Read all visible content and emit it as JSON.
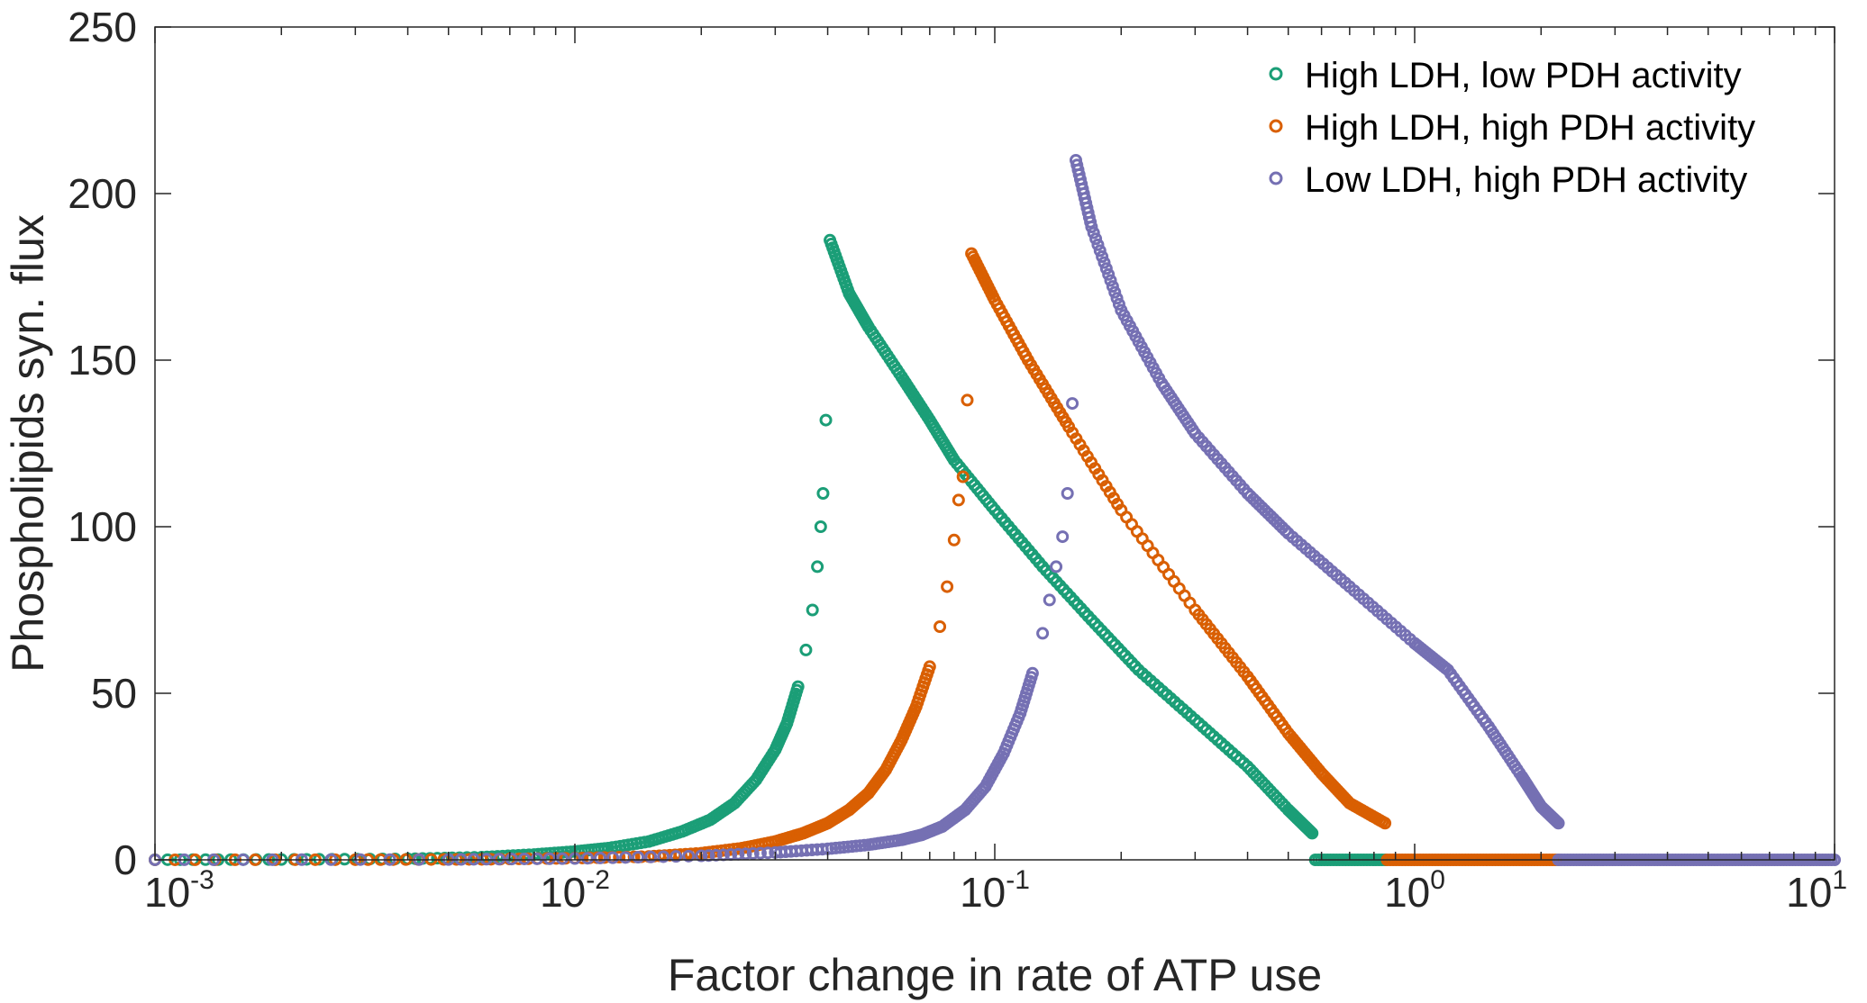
{
  "colors": {
    "axis": "#262626",
    "background": "#ffffff"
  },
  "chart_data": {
    "type": "scatter",
    "title": "",
    "xlabel": "Factor change in rate of ATP use",
    "ylabel": "Phospholipids syn. flux",
    "xscale": "log",
    "xlim": [
      0.001,
      10
    ],
    "ylim": [
      0,
      250
    ],
    "grid": false,
    "box": true,
    "legend_position": "top-right",
    "marker": "open-circle",
    "x_ticks": [
      {
        "base": "10",
        "exp": "-3",
        "value": 0.001
      },
      {
        "base": "10",
        "exp": "-2",
        "value": 0.01
      },
      {
        "base": "10",
        "exp": "-1",
        "value": 0.1
      },
      {
        "base": "10",
        "exp": "0",
        "value": 1
      },
      {
        "base": "10",
        "exp": "1",
        "value": 10
      }
    ],
    "y_ticks": [
      {
        "label": "0",
        "value": 0
      },
      {
        "label": "50",
        "value": 50
      },
      {
        "label": "100",
        "value": 100
      },
      {
        "label": "150",
        "value": 150
      },
      {
        "label": "200",
        "value": 200
      },
      {
        "label": "250",
        "value": 250
      }
    ],
    "series": [
      {
        "name": "High LDH, low PDH activity",
        "color": "#1b9e77",
        "rise": [
          [
            0.001,
            0.03
          ],
          [
            0.002,
            0.1
          ],
          [
            0.004,
            0.3
          ],
          [
            0.006,
            0.8
          ],
          [
            0.008,
            1.6
          ],
          [
            0.01,
            2.5
          ],
          [
            0.012,
            3.5
          ],
          [
            0.015,
            5.5
          ],
          [
            0.018,
            8.5
          ],
          [
            0.021,
            12
          ],
          [
            0.024,
            17
          ],
          [
            0.027,
            24
          ],
          [
            0.03,
            33
          ],
          [
            0.032,
            41
          ],
          [
            0.034,
            52
          ],
          [
            0.0355,
            63
          ],
          [
            0.0368,
            75
          ],
          [
            0.0378,
            88
          ],
          [
            0.0385,
            100
          ],
          [
            0.039,
            110
          ],
          [
            0.0396,
            132
          ]
        ],
        "fall": [
          [
            0.0405,
            186
          ],
          [
            0.045,
            170
          ],
          [
            0.05,
            160
          ],
          [
            0.06,
            145
          ],
          [
            0.07,
            132
          ],
          [
            0.08,
            120
          ],
          [
            0.1,
            105
          ],
          [
            0.13,
            88
          ],
          [
            0.17,
            72
          ],
          [
            0.22,
            57
          ],
          [
            0.3,
            42
          ],
          [
            0.4,
            28
          ],
          [
            0.5,
            15
          ],
          [
            0.57,
            8
          ]
        ],
        "zero": [
          0.58,
          0.85
        ]
      },
      {
        "name": "High LDH, high PDH activity",
        "color": "#d95f02",
        "rise": [
          [
            0.001,
            0.01
          ],
          [
            0.003,
            0.05
          ],
          [
            0.006,
            0.15
          ],
          [
            0.01,
            0.5
          ],
          [
            0.015,
            1
          ],
          [
            0.02,
            2
          ],
          [
            0.025,
            3.5
          ],
          [
            0.03,
            5.5
          ],
          [
            0.035,
            8
          ],
          [
            0.04,
            11
          ],
          [
            0.045,
            15
          ],
          [
            0.05,
            20
          ],
          [
            0.055,
            27
          ],
          [
            0.06,
            36
          ],
          [
            0.065,
            46
          ],
          [
            0.07,
            58
          ],
          [
            0.074,
            70
          ],
          [
            0.077,
            82
          ],
          [
            0.08,
            96
          ],
          [
            0.082,
            108
          ],
          [
            0.084,
            115
          ],
          [
            0.086,
            138
          ]
        ],
        "fall": [
          [
            0.088,
            182
          ],
          [
            0.1,
            168
          ],
          [
            0.12,
            150
          ],
          [
            0.15,
            130
          ],
          [
            0.2,
            105
          ],
          [
            0.3,
            75
          ],
          [
            0.4,
            55
          ],
          [
            0.5,
            38
          ],
          [
            0.6,
            26
          ],
          [
            0.7,
            17
          ],
          [
            0.85,
            11
          ]
        ],
        "zero": [
          0.86,
          2.2
        ]
      },
      {
        "name": "Low LDH, high PDH activity",
        "color": "#7570b3",
        "rise": [
          [
            0.001,
            0.01
          ],
          [
            0.005,
            0.1
          ],
          [
            0.01,
            0.4
          ],
          [
            0.02,
            1.2
          ],
          [
            0.03,
            2.2
          ],
          [
            0.04,
            3.3
          ],
          [
            0.05,
            4.5
          ],
          [
            0.06,
            6
          ],
          [
            0.067,
            7.5
          ],
          [
            0.075,
            10
          ],
          [
            0.085,
            15
          ],
          [
            0.095,
            22
          ],
          [
            0.105,
            32
          ],
          [
            0.115,
            44
          ],
          [
            0.123,
            56
          ],
          [
            0.13,
            68
          ],
          [
            0.135,
            78
          ],
          [
            0.14,
            88
          ],
          [
            0.145,
            97
          ],
          [
            0.149,
            110
          ],
          [
            0.153,
            137
          ]
        ],
        "fall": [
          [
            0.156,
            210
          ],
          [
            0.17,
            190
          ],
          [
            0.2,
            165
          ],
          [
            0.25,
            143
          ],
          [
            0.3,
            128
          ],
          [
            0.4,
            110
          ],
          [
            0.5,
            98
          ],
          [
            0.7,
            82
          ],
          [
            1.0,
            65
          ],
          [
            1.2,
            57
          ],
          [
            1.5,
            40
          ],
          [
            1.8,
            25
          ],
          [
            2.0,
            16
          ],
          [
            2.2,
            11
          ]
        ],
        "zero": [
          2.2,
          10
        ]
      }
    ]
  }
}
